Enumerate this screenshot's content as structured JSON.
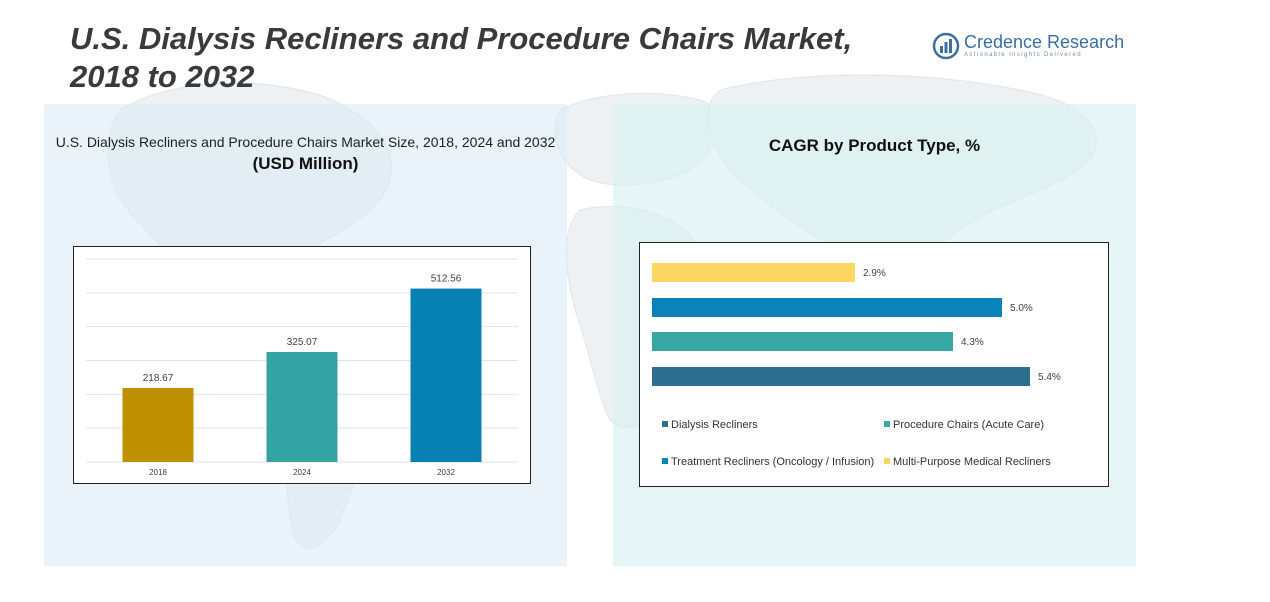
{
  "header": {
    "title": "U.S. Dialysis Recliners and Procedure Chairs Market, 2018 to 2032"
  },
  "logo": {
    "name": "Credence Research",
    "tagline": "Actionable Insights Delivered"
  },
  "left_panel": {
    "title": "U.S. Dialysis Recliners and Procedure Chairs Market Size, 2018, 2024 and 2032",
    "subtitle": "(USD Million)"
  },
  "right_panel": {
    "title": "CAGR by Product Type, %"
  },
  "colors": {
    "bar_2018": "#bf9000",
    "bar_2024": "#33a3a3",
    "bar_2032": "#0780b3",
    "dialysis_recliners": "#2e6e8e",
    "procedure_chairs": "#36a7a4",
    "treatment_recliners": "#0a84b8",
    "multi_purpose": "#fdd762"
  },
  "chart_data": [
    {
      "type": "bar",
      "categories": [
        "2018",
        "2024",
        "2032"
      ],
      "values": [
        218.67,
        325.07,
        512.56
      ],
      "data_labels": [
        "218.67",
        "325.07",
        "512.56"
      ],
      "ylim": [
        0,
        600
      ],
      "grid": true,
      "y_axis_labels_shown": false
    },
    {
      "type": "bar",
      "orientation": "horizontal",
      "categories": [
        "Dialysis Recliners",
        "Procedure Chairs (Acute Care)",
        "Treatment Recliners (Oncology / Infusion)",
        "Multi-Purpose Medical Recliners"
      ],
      "values": [
        5.4,
        4.3,
        5.0,
        2.9
      ],
      "data_labels": [
        "5.4%",
        "4.3%",
        "5.0%",
        "2.9%"
      ],
      "xlim": [
        0,
        6
      ],
      "legend": "bottom"
    }
  ]
}
